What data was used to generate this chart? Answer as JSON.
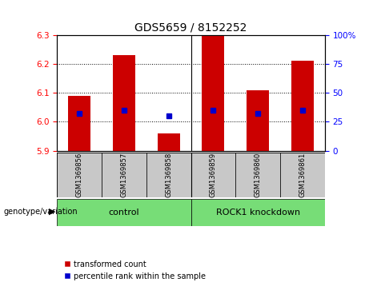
{
  "title": "GDS5659 / 8152252",
  "samples": [
    "GSM1369856",
    "GSM1369857",
    "GSM1369858",
    "GSM1369859",
    "GSM1369860",
    "GSM1369861"
  ],
  "transformed_counts": [
    6.09,
    6.23,
    5.96,
    6.3,
    6.11,
    6.21
  ],
  "percentile_values": [
    6.03,
    6.04,
    6.02,
    6.04,
    6.03,
    6.04
  ],
  "ylim_left": [
    5.9,
    6.3
  ],
  "ylim_right": [
    0,
    100
  ],
  "yticks_left": [
    5.9,
    6.0,
    6.1,
    6.2,
    6.3
  ],
  "yticks_right": [
    0,
    25,
    50,
    75,
    100
  ],
  "bar_color": "#cc0000",
  "dot_color": "#0000cc",
  "bar_bottom": 5.9,
  "sample_bg": "#c8c8c8",
  "group_bg": "#77dd77",
  "legend_items": [
    "transformed count",
    "percentile rank within the sample"
  ],
  "control_label": "control",
  "knockdown_label": "ROCK1 knockdown",
  "genotype_label": "genotype/variation",
  "arrow": "▶"
}
